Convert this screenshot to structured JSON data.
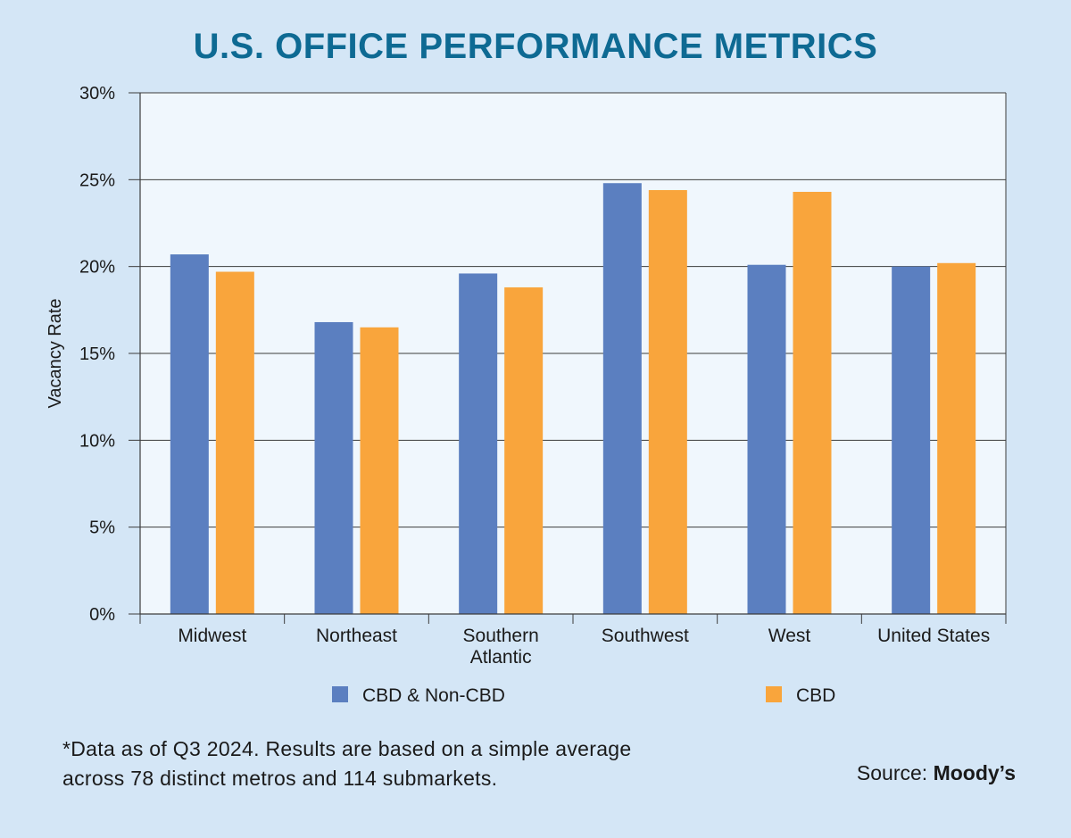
{
  "chart_data": {
    "type": "bar",
    "title": "U.S. OFFICE PERFORMANCE METRICS",
    "xlabel": "",
    "ylabel": "Vacancy Rate",
    "categories": [
      "Midwest",
      "Northeast",
      "Southern Atlantic",
      "Southwest",
      "West",
      "United States"
    ],
    "category_lines": [
      [
        "Midwest"
      ],
      [
        "Northeast"
      ],
      [
        "Southern",
        "Atlantic"
      ],
      [
        "Southwest"
      ],
      [
        "West"
      ],
      [
        "United States"
      ]
    ],
    "series": [
      {
        "name": "CBD & Non-CBD",
        "color": "#5b7fc0",
        "values": [
          20.7,
          16.8,
          19.6,
          24.8,
          20.1,
          20.0
        ]
      },
      {
        "name": "CBD",
        "color": "#f9a53c",
        "values": [
          19.7,
          16.5,
          18.8,
          24.4,
          24.3,
          20.2
        ]
      }
    ],
    "ylim": [
      0,
      30
    ],
    "yticks": [
      0,
      5,
      10,
      15,
      20,
      25,
      30
    ],
    "ytick_labels": [
      "0%",
      "5%",
      "10%",
      "15%",
      "20%",
      "25%",
      "30%"
    ],
    "grid": true,
    "legend_position": "bottom"
  },
  "footnote": {
    "line1": "*Data as of Q3 2024. Results are based on a simple average",
    "line2": "across 78 distinct metros and 114 submarkets."
  },
  "source": {
    "label": "Source:",
    "brand": "Moody’s"
  }
}
